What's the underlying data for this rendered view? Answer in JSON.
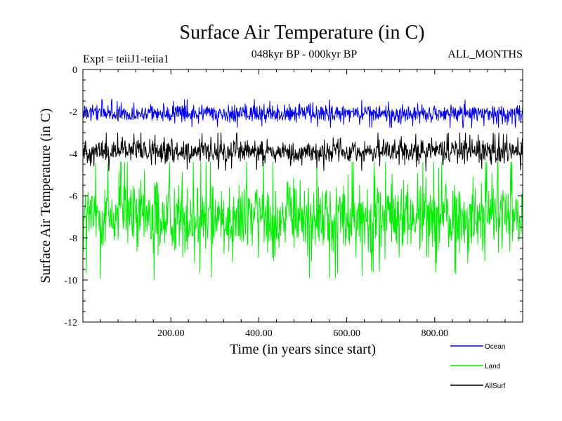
{
  "chart_data": {
    "type": "line",
    "title": "Surface Air Temperature (in C)",
    "subtitle_left": "Expt = teiiJ1-teiia1",
    "subtitle_center": "048kyr BP - 000kyr BP",
    "subtitle_right": "ALL_MONTHS",
    "xlabel": "Time (in years since start)",
    "ylabel": "Surface Air Temperature (in C)",
    "xlim": [
      0,
      1000
    ],
    "ylim": [
      -12,
      0
    ],
    "x_ticks": [
      200,
      400,
      600,
      800
    ],
    "x_tick_labels": [
      "200.00",
      "400.00",
      "600.00",
      "800.00"
    ],
    "y_ticks": [
      0,
      -2,
      -4,
      -6,
      -8,
      -10,
      -12
    ],
    "y_tick_labels": [
      "0",
      "-2",
      "-4",
      "-6",
      "-8",
      "-10",
      "-12"
    ],
    "grid": false,
    "legend_position": "bottom-right",
    "series": [
      {
        "name": "Land",
        "color": "#00ee00",
        "x_range": [
          1,
          1000
        ],
        "mean": -7.0,
        "min_approx": -10.4,
        "max_approx": -4.4
      },
      {
        "name": "AllSurf",
        "color": "#000000",
        "x_range": [
          1,
          1000
        ],
        "mean": -3.9,
        "min_approx": -4.9,
        "max_approx": -3.0
      },
      {
        "name": "Ocean",
        "color": "#0000ee",
        "x_range": [
          1,
          1000
        ],
        "mean": -2.1,
        "min_approx": -2.8,
        "max_approx": -1.4
      }
    ],
    "legend": [
      {
        "name": "Ocean",
        "color": "#0000ee"
      },
      {
        "name": "Land",
        "color": "#00ee00"
      },
      {
        "name": "AllSurf",
        "color": "#000000"
      }
    ]
  }
}
